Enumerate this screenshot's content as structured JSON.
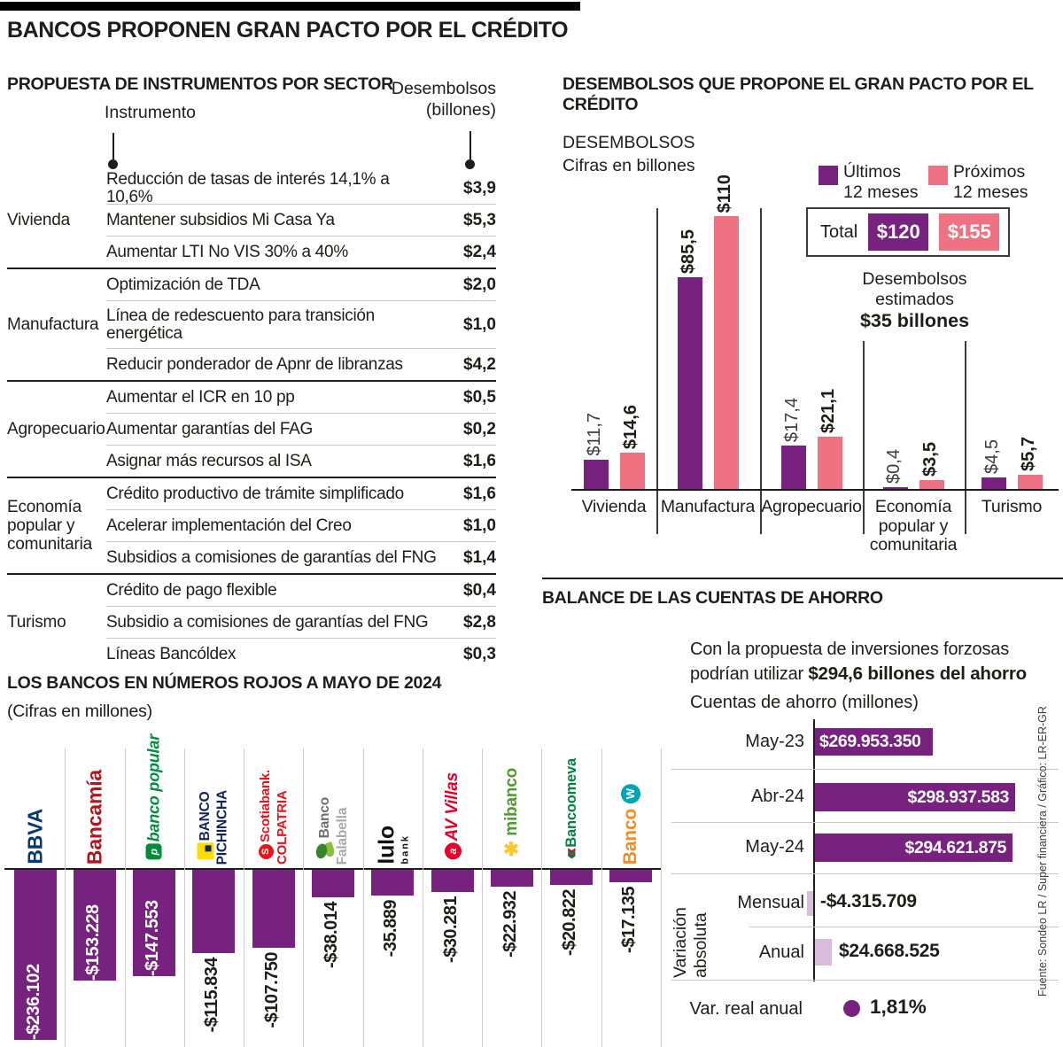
{
  "page_title": "BANCOS PROPONEN GRAN PACTO POR EL CRÉDITO",
  "source_credit": "Fuente: Sondeo LR / Super financiera  / Gráfico: LR-ER-GR",
  "colors": {
    "purple": "#77227E",
    "pink": "#EF7283",
    "light_purple": "#D9BEDC",
    "text": "#1D1D1B"
  },
  "chart_data": [
    {
      "id": "instruments-table",
      "type": "table",
      "title": "PROPUESTA DE INSTRUMENTOS POR SECTOR",
      "col_instrument": "Instrumento",
      "col_value_line1": "Desembolsos",
      "col_value_line2": "(billones)",
      "sectors": [
        {
          "sector": "Vivienda",
          "rows": [
            {
              "instrument": "Reducción de tasas de interés 14,1% a 10,6%",
              "value": "$3,9"
            },
            {
              "instrument": "Mantener subsidios Mi Casa Ya",
              "value": "$5,3"
            },
            {
              "instrument": "Aumentar LTI No VIS 30% a 40%",
              "value": "$2,4"
            }
          ]
        },
        {
          "sector": "Manufactura",
          "rows": [
            {
              "instrument": "Optimización de TDA",
              "value": "$2,0"
            },
            {
              "instrument": "Línea de redescuento para transición energética",
              "value": "$1,0",
              "tall": true
            },
            {
              "instrument": "Reducir ponderador de Apnr de libranzas",
              "value": "$4,2"
            }
          ]
        },
        {
          "sector": "Agropecuario",
          "rows": [
            {
              "instrument": "Aumentar el ICR en 10 pp",
              "value": "$0,5"
            },
            {
              "instrument": "Aumentar garantías del FAG",
              "value": "$0,2"
            },
            {
              "instrument": "Asignar más recursos al ISA",
              "value": "$1,6"
            }
          ]
        },
        {
          "sector": "Economía popular y comunitaria",
          "rows": [
            {
              "instrument": "Crédito productivo de trámite simplificado",
              "value": "$1,6"
            },
            {
              "instrument": "Acelerar implementación del Creo",
              "value": "$1,0"
            },
            {
              "instrument": "Subsidios a comisiones de garantías del FNG",
              "value": "$1,4"
            }
          ]
        },
        {
          "sector": "Turismo",
          "rows": [
            {
              "instrument": "Crédito de pago flexible",
              "value": "$0,4"
            },
            {
              "instrument": "Subsidio a comisiones de garantías del FNG",
              "value": "$2,8"
            },
            {
              "instrument": "Líneas Bancóldex",
              "value": "$0,3"
            }
          ]
        }
      ]
    },
    {
      "id": "pact-desembolsos",
      "type": "bar",
      "title": "DESEMBOLSOS QUE PROPONE EL GRAN PACTO POR EL CRÉDITO",
      "ylabel_line1": "DESEMBOLSOS",
      "ylabel_line2": "Cifras en billones",
      "categories": [
        "Vivienda",
        "Manufactura",
        "Agropecuario",
        "Economía popular y comunitaria",
        "Turismo"
      ],
      "series": [
        {
          "name": "Últimos 12 meses",
          "name_line1": "Últimos",
          "name_line2": "12 meses",
          "color": "#77227E",
          "values": [
            11.7,
            85.5,
            17.4,
            0.4,
            4.5
          ],
          "value_labels": [
            "$11,7",
            "$85,5",
            "$17,4",
            "$0,4",
            "$4,5"
          ],
          "labels_bold": [
            false,
            true,
            false,
            false,
            false
          ],
          "total": 120,
          "total_label": "$120"
        },
        {
          "name": "Próximos 12 meses",
          "name_line1": "Próximos",
          "name_line2": "12 meses",
          "color": "#EF7283",
          "values": [
            14.6,
            110,
            21.1,
            3.5,
            5.7
          ],
          "value_labels": [
            "$14,6",
            "$110",
            "$21,1",
            "$3,5",
            "$5,7"
          ],
          "labels_bold": [
            true,
            true,
            true,
            true,
            true
          ],
          "total": 155,
          "total_label": "$155"
        }
      ],
      "total_caption": "Total",
      "annotation_line1": "Desembolsos estimados",
      "annotation_line2": "$35 billones",
      "ylim": [
        0,
        110
      ],
      "legend_position": "top-right",
      "grid": false
    },
    {
      "id": "banks-losses",
      "type": "bar",
      "title": "LOS BANCOS EN NÚMEROS ROJOS A MAYO DE 2024",
      "subtitle": "(Cifras en millones)",
      "bar_color": "#77227E",
      "banks": [
        {
          "name": "BBVA",
          "logo_lines": [
            "BBVA"
          ],
          "logo_color": "#04396C",
          "value": -236102,
          "value_label": "-$236.102"
        },
        {
          "name": "Bancamía",
          "logo_lines": [
            "Bancamía"
          ],
          "logo_color": "#B5121B",
          "value": -153228,
          "value_label": "-$153.228"
        },
        {
          "name": "Banco Popular",
          "logo_lines": [
            "banco popular"
          ],
          "logo_color": "#008C3C",
          "value": -147553,
          "value_label": "-$147.553"
        },
        {
          "name": "Banco Pichincha",
          "logo_lines": [
            "BANCO",
            "PICHINCHA"
          ],
          "logo_color": "#12255A",
          "value": -115834,
          "value_label": "-$115.834"
        },
        {
          "name": "Scotiabank Colpatria",
          "logo_lines": [
            "Scotiabank.",
            "COLPATRIA"
          ],
          "logo_color": "#EC111A",
          "value": -107750,
          "value_label": "-$107.750"
        },
        {
          "name": "Banco Falabella",
          "logo_lines": [
            "Banco",
            "Falabella"
          ],
          "logo_color": "#6D6E71",
          "logo_line2_color": "#A7A9AC",
          "value": -38014,
          "value_label": "-$38.014"
        },
        {
          "name": "Lulo Bank",
          "logo_lines": [
            "lulo",
            "bank"
          ],
          "logo_color": "#111111",
          "value": -35889,
          "value_label": "-35.889"
        },
        {
          "name": "AV Villas",
          "logo_lines": [
            "AV Villas"
          ],
          "logo_color": "#E4002B",
          "value": -30281,
          "value_label": "-$30.281"
        },
        {
          "name": "Mibanco",
          "logo_lines": [
            "mibanco"
          ],
          "logo_color": "#4C9C2E",
          "value": -22932,
          "value_label": "-$22.932"
        },
        {
          "name": "Bancoomeva",
          "logo_lines": [
            "Bancoomeva"
          ],
          "logo_color": "#00833E",
          "value": -20822,
          "value_label": "-$20.822"
        },
        {
          "name": "Banco W",
          "logo_lines": [
            "Banco"
          ],
          "logo_color": "#F68B1F",
          "accent_color": "#00A5B5",
          "value": -17135,
          "value_label": "-$17.135"
        }
      ]
    },
    {
      "id": "savings-balance",
      "type": "bar",
      "title": "BALANCE DE LAS CUENTAS DE AHORRO",
      "note_line1": "Con la propuesta de inversiones forzosas",
      "note_line2_prefix": "podrían utilizar ",
      "note_line2_bold": "$294,6 billones del ahorro",
      "axis_caption": "Cuentas de ahorro (millones)",
      "bar_color": "#77227E",
      "variation_bar_color": "#D9BEDC",
      "rows": [
        {
          "label": "May-23",
          "value": 269953350,
          "value_label": "$269.953.350"
        },
        {
          "label": "Abr-24",
          "value": 298937583,
          "value_label": "$298.937.583"
        },
        {
          "label": "May-24",
          "value": 294621875,
          "value_label": "$294.621.875"
        }
      ],
      "variation_group_line1": "Variación",
      "variation_group_line2": "absoluta",
      "variation_rows": [
        {
          "label": "Mensual",
          "value": -4315709,
          "value_label": "-$4.315.709"
        },
        {
          "label": "Anual",
          "value": 24668525,
          "value_label": "$24.668.525"
        }
      ],
      "footer_label": "Var. real anual",
      "footer_value": "1,81%"
    }
  ]
}
